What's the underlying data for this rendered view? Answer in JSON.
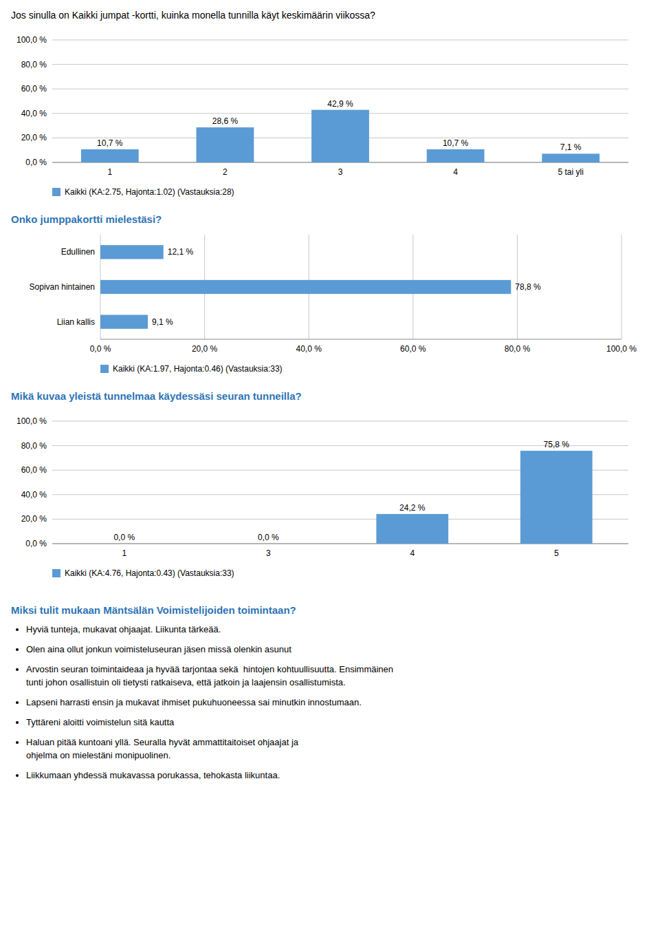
{
  "chart_data": [
    {
      "type": "bar",
      "title": "Jos sinulla on Kaikki jumpat -kortti, kuinka monella tunnilla käyt keskimäärin viikossa?",
      "categories": [
        "1",
        "2",
        "3",
        "4",
        "5 tai yli"
      ],
      "series": [
        {
          "name": "Kaikki (KA:2.75, Hajonta:1.02) (Vastauksia:28)",
          "color": "#5B9BD5",
          "values": [
            10.7,
            28.6,
            42.9,
            10.7,
            7.1
          ],
          "value_labels": [
            "10,7 %",
            "28,6 %",
            "42,9 %",
            "10,7 %",
            "7,1 %"
          ]
        }
      ],
      "ylim": [
        0,
        100
      ],
      "yticks": [
        {
          "value": 0,
          "label": "0,0 %"
        },
        {
          "value": 20,
          "label": "20,0 %"
        },
        {
          "value": 40,
          "label": "40,0 %"
        },
        {
          "value": 60,
          "label": "60,0 %"
        },
        {
          "value": 80,
          "label": "80,0 %"
        },
        {
          "value": 100,
          "label": "100,0 %"
        }
      ],
      "grid": true,
      "data_labels": true,
      "legend": "bottom"
    },
    {
      "type": "bar",
      "orientation": "horizontal",
      "title": "Onko jumppakortti mielestäsi?",
      "categories": [
        "Edullinen",
        "Sopivan hintainen",
        "Liian kallis"
      ],
      "series": [
        {
          "name": "Kaikki (KA:1.97, Hajonta:0.46) (Vastauksia:33)",
          "color": "#5B9BD5",
          "values": [
            12.1,
            78.8,
            9.1
          ],
          "value_labels": [
            "12,1 %",
            "78,8 %",
            "9,1 %"
          ]
        }
      ],
      "xlim": [
        0,
        100
      ],
      "xticks": [
        {
          "value": 0,
          "label": "0,0 %"
        },
        {
          "value": 20,
          "label": "20,0 %"
        },
        {
          "value": 40,
          "label": "40,0 %"
        },
        {
          "value": 60,
          "label": "60,0 %"
        },
        {
          "value": 80,
          "label": "80,0 %"
        },
        {
          "value": 100,
          "label": "100,0 %"
        }
      ],
      "grid": true,
      "data_labels": true,
      "legend": "bottom"
    },
    {
      "type": "bar",
      "title": "Mikä kuvaa yleistä tunnelmaa käydessäsi seuran tunneilla?",
      "categories": [
        "1",
        "3",
        "4",
        "5"
      ],
      "series": [
        {
          "name": "Kaikki (KA:4.76, Hajonta:0.43) (Vastauksia:33)",
          "color": "#5B9BD5",
          "values": [
            0.0,
            0.0,
            24.2,
            75.8
          ],
          "value_labels": [
            "0,0 %",
            "0,0 %",
            "24,2 %",
            "75,8 %"
          ]
        }
      ],
      "ylim": [
        0,
        100
      ],
      "yticks": [
        {
          "value": 0,
          "label": "0,0 %"
        },
        {
          "value": 20,
          "label": "20,0 %"
        },
        {
          "value": 40,
          "label": "40,0 %"
        },
        {
          "value": 60,
          "label": "60,0 %"
        },
        {
          "value": 80,
          "label": "80,0 %"
        },
        {
          "value": 100,
          "label": "100,0 %"
        }
      ],
      "grid": true,
      "data_labels": true,
      "legend": "bottom"
    }
  ],
  "text_section": {
    "title": "Miksi tulit mukaan Mäntsälän Voimistelijoiden toimintaan?",
    "items": [
      "Hyviä tunteja, mukavat ohjaajat. Liikunta tärkeää.",
      "Olen aina ollut jonkun voimisteluseuran jäsen missä olenkin asunut",
      "Arvostin seuran toimintaideaa ja hyvää tarjontaa sekä  hintojen kohtuullisuutta. Ensimmäinen\ntunti johon osallistuin oli tietysti ratkaiseva, että jatkoin ja laajensin osallistumista.",
      "Lapseni harrasti ensin ja mukavat ihmiset pukuhuoneessa sai minutkin innostumaan.",
      "Tyttäreni aloitti voimistelun sitä kautta",
      "Haluan pitää kuntoani yllä. Seuralla hyvät ammattitaitoiset ohjaajat ja\nohjelma on mielestäni monipuolinen.",
      "Liikkumaan yhdessä mukavassa porukassa, tehokasta liikuntaa."
    ]
  }
}
